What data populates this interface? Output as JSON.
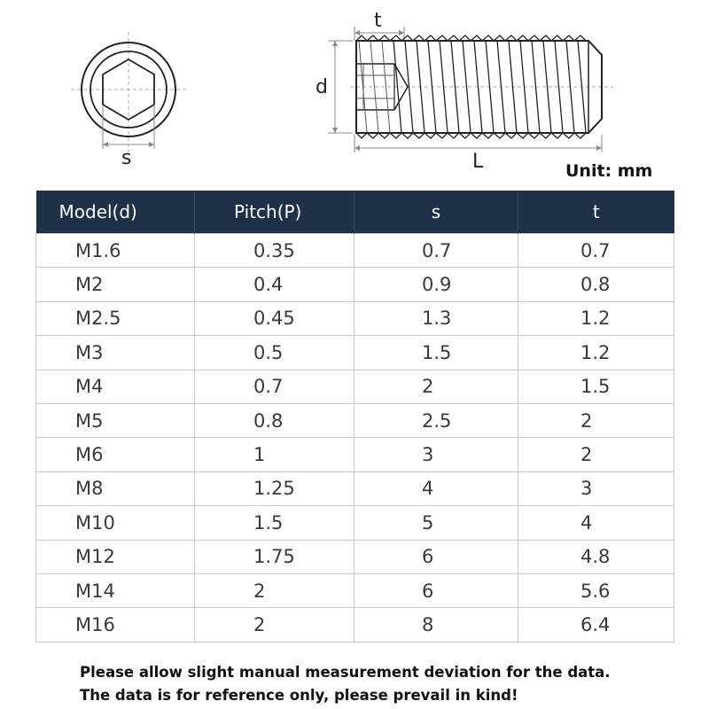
{
  "dimension_labels": {
    "s": "s",
    "t": "t",
    "d": "d",
    "L": "L"
  },
  "unit": "Unit: mm",
  "table": {
    "headers": [
      "Model(d)",
      "Pitch(P)",
      "s",
      "t"
    ],
    "rows": [
      [
        "M1.6",
        "0.35",
        "0.7",
        "0.7"
      ],
      [
        "M2",
        "0.4",
        "0.9",
        "0.8"
      ],
      [
        "M2.5",
        "0.45",
        "1.3",
        "1.2"
      ],
      [
        "M3",
        "0.5",
        "1.5",
        "1.2"
      ],
      [
        "M4",
        "0.7",
        "2",
        "1.5"
      ],
      [
        "M5",
        "0.8",
        "2.5",
        "2"
      ],
      [
        "M6",
        "1",
        "3",
        "2"
      ],
      [
        "M8",
        "1.25",
        "4",
        "3"
      ],
      [
        "M10",
        "1.5",
        "5",
        "4"
      ],
      [
        "M12",
        "1.75",
        "6",
        "4.8"
      ],
      [
        "M14",
        "2",
        "6",
        "5.6"
      ],
      [
        "M16",
        "2",
        "8",
        "6.4"
      ]
    ]
  },
  "notes": [
    "Please allow slight manual measurement deviation for the data.",
    "The data is for reference only, please prevail in kind!"
  ],
  "colors": {
    "header_bg": "#1f3148",
    "header_text": "#ffffff",
    "grid": "#c8c8c8"
  }
}
